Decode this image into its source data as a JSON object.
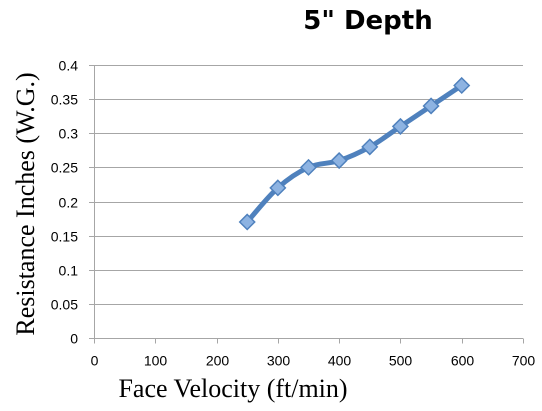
{
  "chart_data": {
    "type": "scatter",
    "title": "5\" Depth",
    "xlabel": "Face Velocity (ft/min)",
    "ylabel": "Resistance Inches (W.G.)",
    "xlim": [
      0,
      700
    ],
    "ylim": [
      0,
      0.4
    ],
    "x_ticks": [
      "0",
      "100",
      "200",
      "300",
      "400",
      "500",
      "600",
      "700"
    ],
    "y_ticks": [
      "0",
      "0.05",
      "0.1",
      "0.15",
      "0.2",
      "0.25",
      "0.3",
      "0.35",
      "0.4"
    ],
    "grid": "horizontal",
    "legend": "none",
    "style": "smoothed line with diamond markers",
    "series": [
      {
        "x": [
          250,
          300,
          350,
          400,
          450,
          500,
          550,
          600
        ],
        "y": [
          0.17,
          0.22,
          0.25,
          0.26,
          0.28,
          0.31,
          0.34,
          0.37
        ],
        "color": "#4f81bd",
        "marker_fill": "#8db3e2"
      }
    ]
  }
}
